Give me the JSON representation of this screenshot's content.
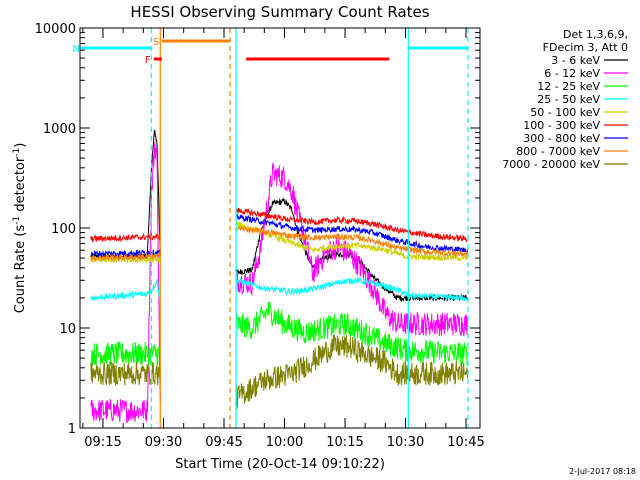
{
  "chart_data": {
    "type": "line",
    "title": "HESSI Observing Summary Count Rates",
    "xlabel": "Start Time (20-Oct-14 09:10:22)",
    "ylabel_main": "Count Rate (s",
    "ylabel_sup1": "-1",
    "ylabel_mid": " detector",
    "ylabel_sup2": "-1",
    "ylabel_end": ")",
    "yscale": "log",
    "ylim": [
      1,
      10000
    ],
    "xlim_minutes": [
      9.63,
      46.8
    ],
    "x_ticks": [
      {
        "m": 15,
        "label": "09:15"
      },
      {
        "m": 30,
        "label": "09:30"
      },
      {
        "m": 45,
        "label": "09:45"
      },
      {
        "m": 60,
        "label": "10:00"
      },
      {
        "m": 75,
        "label": "10:15"
      },
      {
        "m": 90,
        "label": "10:30"
      },
      {
        "m": 105,
        "label": "10:45"
      }
    ],
    "y_ticks": [
      {
        "v": 1,
        "label": "1"
      },
      {
        "v": 10,
        "label": "10"
      },
      {
        "v": 100,
        "label": "100"
      },
      {
        "v": 1000,
        "label": "1000"
      },
      {
        "v": 10000,
        "label": "10000"
      }
    ],
    "legend_header": [
      "Det 1,3,6,9,",
      "FDecim 3, Att 0"
    ],
    "series": [
      {
        "name": "3 - 6 keV",
        "color": "#000000",
        "values": [
          [
            12,
            52
          ],
          [
            26,
            52
          ],
          [
            27,
            400
          ],
          [
            27.8,
            950
          ],
          [
            28.4,
            700
          ],
          [
            29.2,
            56
          ],
          [
            48,
            36
          ],
          [
            52,
            38
          ],
          [
            54,
            90
          ],
          [
            57,
            175
          ],
          [
            60,
            185
          ],
          [
            62,
            150
          ],
          [
            63,
            100
          ],
          [
            65,
            60
          ],
          [
            67,
            40
          ],
          [
            70,
            50
          ],
          [
            73,
            55
          ],
          [
            76,
            55
          ],
          [
            79,
            45
          ],
          [
            82,
            32
          ],
          [
            85,
            25
          ],
          [
            88,
            20
          ]
        ]
      },
      {
        "name": "6 - 12 keV",
        "color": "#ff00ff",
        "values": [
          [
            12,
            1.5
          ],
          [
            26,
            1.5
          ],
          [
            27,
            200
          ],
          [
            27.8,
            700
          ],
          [
            28.4,
            500
          ],
          [
            29.2,
            1.6
          ],
          [
            48,
            30
          ],
          [
            52,
            28
          ],
          [
            54,
            60
          ],
          [
            57,
            350
          ],
          [
            60,
            320
          ],
          [
            62,
            230
          ],
          [
            63,
            150
          ],
          [
            65,
            80
          ],
          [
            67,
            35
          ],
          [
            70,
            55
          ],
          [
            73,
            65
          ],
          [
            76,
            55
          ],
          [
            79,
            40
          ],
          [
            82,
            25
          ],
          [
            85,
            14
          ],
          [
            88,
            11
          ]
        ]
      },
      {
        "name": "12 - 25 keV",
        "color": "#00ff00",
        "values": [
          [
            12,
            5.5
          ],
          [
            29,
            5.5
          ],
          [
            48,
            11
          ],
          [
            52,
            10
          ],
          [
            56,
            15
          ],
          [
            60,
            11
          ],
          [
            65,
            9
          ],
          [
            70,
            10
          ],
          [
            75,
            11
          ],
          [
            80,
            9
          ],
          [
            85,
            7
          ],
          [
            90,
            6
          ],
          [
            105,
            5.5
          ]
        ]
      },
      {
        "name": "25 - 50 keV",
        "color": "#00ffff",
        "values": [
          [
            12,
            20
          ],
          [
            26,
            22
          ],
          [
            27,
            24
          ],
          [
            28.5,
            30
          ],
          [
            29,
            20
          ],
          [
            48,
            30
          ],
          [
            55,
            25
          ],
          [
            62,
            23
          ],
          [
            68,
            25
          ],
          [
            74,
            29
          ],
          [
            78,
            30
          ],
          [
            84,
            27
          ],
          [
            88,
            24
          ],
          [
            91,
            21
          ],
          [
            105,
            20
          ]
        ]
      },
      {
        "name": "50 - 100 keV",
        "color": "#d0d000",
        "values": [
          [
            12,
            48
          ],
          [
            29,
            48
          ],
          [
            48,
            110
          ],
          [
            55,
            90
          ],
          [
            62,
            70
          ],
          [
            67,
            60
          ],
          [
            72,
            65
          ],
          [
            78,
            67
          ],
          [
            84,
            62
          ],
          [
            90,
            52
          ],
          [
            105,
            50
          ]
        ]
      },
      {
        "name": "100 - 300 keV",
        "color": "#ff0000",
        "values": [
          [
            12,
            78
          ],
          [
            29,
            82
          ],
          [
            48,
            150
          ],
          [
            55,
            135
          ],
          [
            62,
            120
          ],
          [
            68,
            115
          ],
          [
            73,
            120
          ],
          [
            77,
            118
          ],
          [
            82,
            110
          ],
          [
            88,
            95
          ],
          [
            95,
            85
          ],
          [
            105,
            78
          ]
        ]
      },
      {
        "name": "300 - 800 keV",
        "color": "#0000ff",
        "values": [
          [
            12,
            55
          ],
          [
            29,
            57
          ],
          [
            48,
            130
          ],
          [
            55,
            115
          ],
          [
            62,
            100
          ],
          [
            68,
            95
          ],
          [
            73,
            98
          ],
          [
            78,
            96
          ],
          [
            82,
            90
          ],
          [
            88,
            75
          ],
          [
            95,
            65
          ],
          [
            105,
            60
          ]
        ]
      },
      {
        "name": "800 - 7000 keV",
        "color": "#ff8000",
        "values": [
          [
            12,
            50
          ],
          [
            29,
            52
          ],
          [
            48,
            100
          ],
          [
            55,
            92
          ],
          [
            62,
            83
          ],
          [
            68,
            80
          ],
          [
            73,
            82
          ],
          [
            78,
            80
          ],
          [
            82,
            75
          ],
          [
            88,
            63
          ],
          [
            95,
            58
          ],
          [
            105,
            55
          ]
        ]
      },
      {
        "name": "7000 - 20000 keV",
        "color": "#808000",
        "values": [
          [
            12,
            3.5
          ],
          [
            29,
            3.5
          ],
          [
            48,
            2
          ],
          [
            55,
            3
          ],
          [
            62,
            3.5
          ],
          [
            68,
            5
          ],
          [
            72,
            6.5
          ],
          [
            76,
            6.5
          ],
          [
            80,
            5.5
          ],
          [
            85,
            4.5
          ],
          [
            88,
            3.5
          ],
          [
            105,
            3.5
          ]
        ]
      }
    ],
    "flags": [
      {
        "letter": "S",
        "color": "#ff8000",
        "x": [
          29.6,
          46.6
        ]
      },
      {
        "letter": "F",
        "color": "#ff0000",
        "x": [
          27.6,
          29.6
        ]
      },
      {
        "letter": "N",
        "color": "#00ffff",
        "x": [
          9.63,
          27
        ]
      },
      {
        "letter": "",
        "color": "#ff0000",
        "x": [
          50.5,
          86
        ]
      },
      {
        "letter": "",
        "color": "#00ffff",
        "x": [
          90.7,
          105.5
        ]
      }
    ],
    "vlines": [
      {
        "m": 27,
        "color": "#00ffff",
        "style": "dashed"
      },
      {
        "m": 29.2,
        "color": "#ff8000",
        "style": "solid"
      },
      {
        "m": 46.5,
        "color": "#ff8000",
        "style": "dashed"
      },
      {
        "m": 48,
        "color": "#00ffff",
        "style": "solid"
      },
      {
        "m": 90.7,
        "color": "#00ffff",
        "style": "solid"
      },
      {
        "m": 105.5,
        "color": "#00ffff",
        "style": "dashed"
      }
    ],
    "timestamp": "2-Jul-2017 08:18"
  }
}
